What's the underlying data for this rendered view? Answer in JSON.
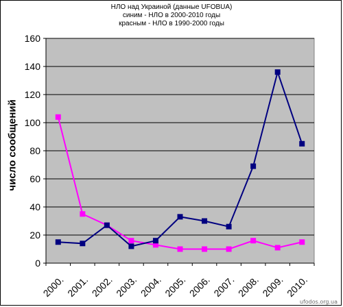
{
  "header": {
    "line1": "НЛО над Украиной (данные UFOBUA)",
    "line2": "синим - НЛО в 2000-2010 годы",
    "line3": "красным - НЛО в 1990-2000 годы"
  },
  "watermark": "ufodos.org.ua",
  "colors": {
    "plot_bg": "#c0c0c0",
    "blue": "#000080",
    "magenta": "#ff00ff",
    "grid": "#000000"
  },
  "chart_data": {
    "type": "line",
    "title": "НЛО над Украиной (данные UFOBUA)",
    "subtitle": [
      "синим - НЛО в 2000-2010 годы",
      "красным - НЛО в 1990-2000 годы"
    ],
    "xlabel": "",
    "ylabel": "число сообщений",
    "categories": [
      "2000.",
      "2001.",
      "2002.",
      "2003.",
      "2004.",
      "2005.",
      "2006.",
      "2007.",
      "2008.",
      "2009.",
      "2010."
    ],
    "ylim": [
      0,
      160
    ],
    "yticks": [
      0,
      20,
      40,
      60,
      80,
      100,
      120,
      140,
      160
    ],
    "grid": true,
    "legend": "none",
    "series": [
      {
        "color": "#000080",
        "values": [
          15,
          14,
          27,
          12,
          16,
          33,
          30,
          26,
          69,
          136,
          85
        ]
      },
      {
        "color": "#ff00ff",
        "values": [
          104,
          35,
          27,
          16,
          13,
          10,
          10,
          10,
          16,
          11,
          15
        ]
      }
    ]
  }
}
